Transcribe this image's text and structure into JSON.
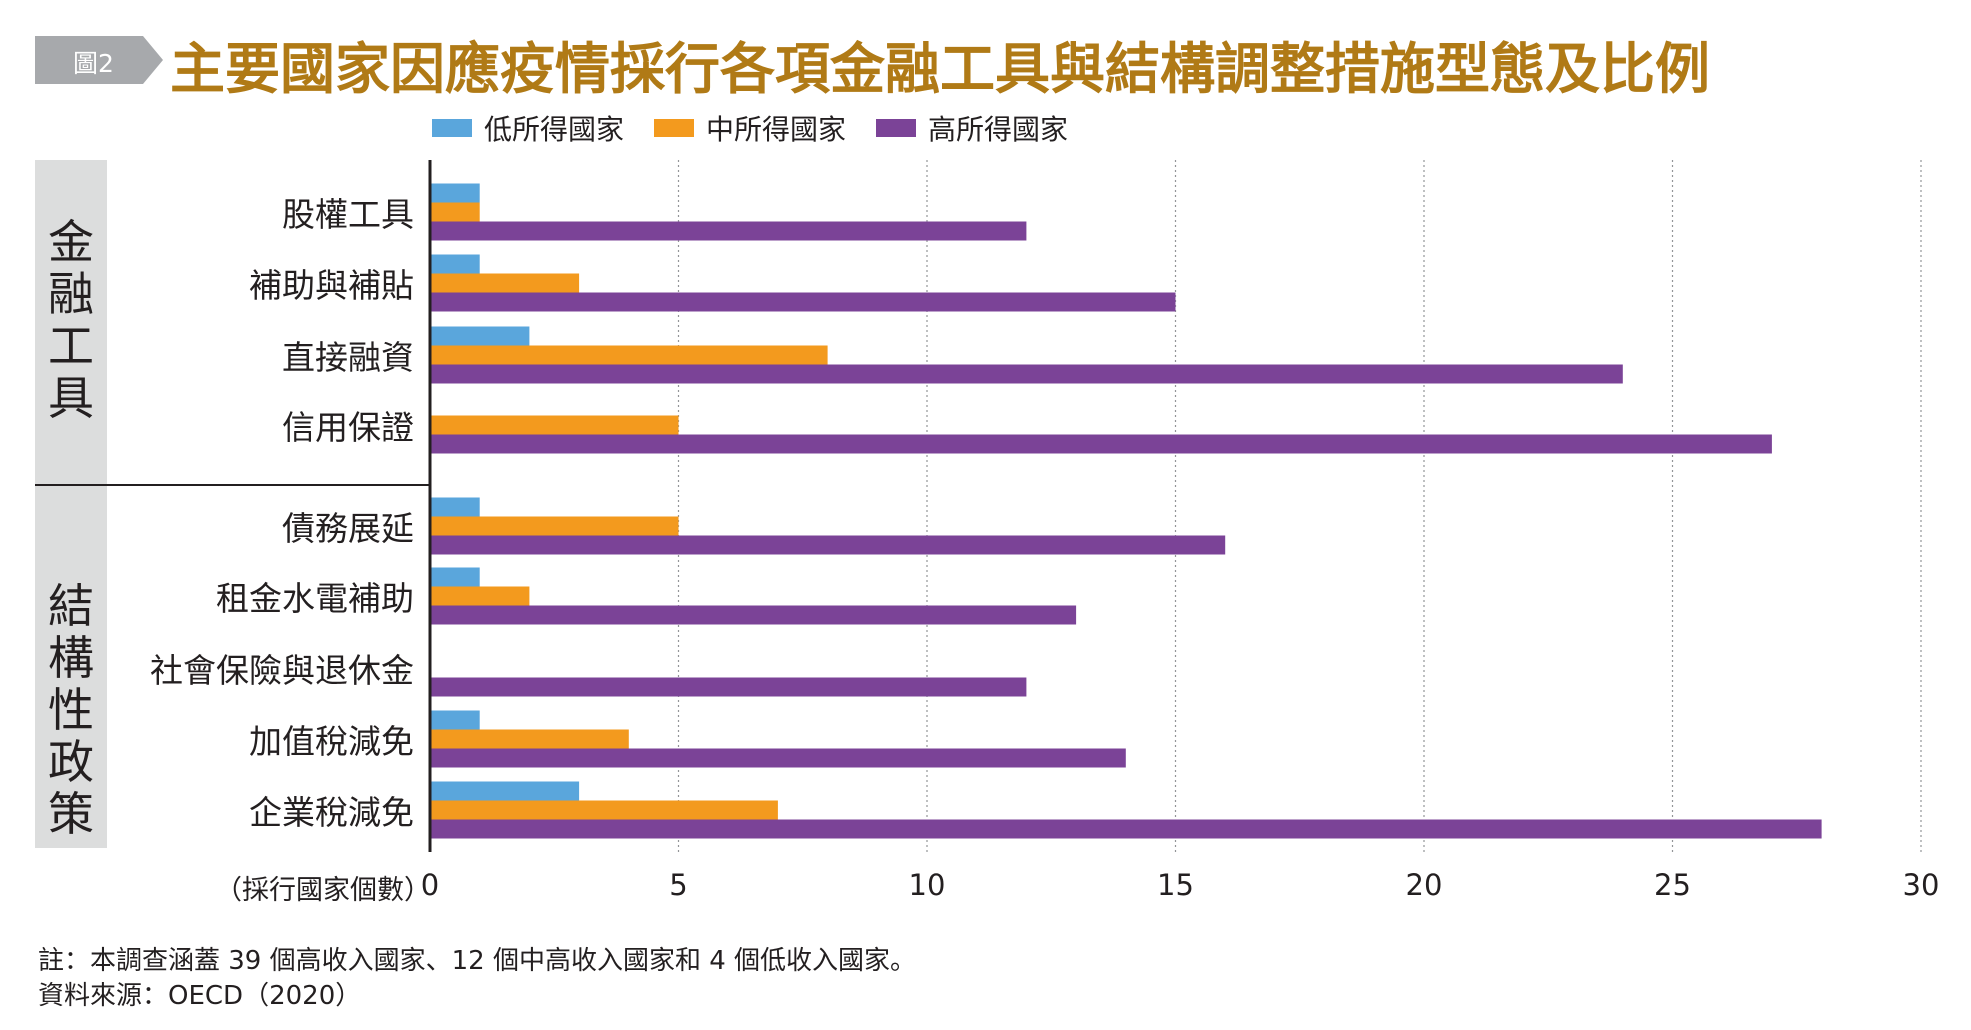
{
  "figure_tag": "圖2",
  "title": "主要國家因應疫情採行各項金融工具與結構調整措施型態及比例",
  "sections": [
    {
      "label": "金融工具"
    },
    {
      "label": "結構性政策"
    }
  ],
  "notes": {
    "note": "註：本調查涵蓋 39 個高收入國家、12 個中高收入國家和 4 個低收入國家。",
    "source": "資料來源：OECD（2020）"
  },
  "colors": {
    "low": "#5aa6dc",
    "middle": "#f39a1e",
    "high": "#7b4397",
    "title": "#b07a16",
    "badge": "#a7a9ac",
    "section_bg": "#dcdddd"
  },
  "chart_data": {
    "type": "bar",
    "orientation": "horizontal",
    "xlabel": "（採行國家個數）",
    "xlim": [
      0,
      30
    ],
    "xticks": [
      0,
      5,
      10,
      15,
      20,
      25,
      30
    ],
    "grid": "vertical dotted",
    "legend_position": "top",
    "categories": [
      "股權工具",
      "補助與補貼",
      "直接融資",
      "信用保證",
      "債務展延",
      "租金水電補助",
      "社會保險與退休金",
      "加值稅減免",
      "企業稅減免"
    ],
    "category_groups": [
      {
        "group": "金融工具",
        "categories": [
          "股權工具",
          "補助與補貼",
          "直接融資",
          "信用保證"
        ]
      },
      {
        "group": "結構性政策",
        "categories": [
          "債務展延",
          "租金水電補助",
          "社會保險與退休金",
          "加值稅減免",
          "企業稅減免"
        ]
      }
    ],
    "series": [
      {
        "name": "低所得國家",
        "color": "#5aa6dc",
        "values": [
          1,
          1,
          2,
          0,
          1,
          1,
          0,
          1,
          3
        ]
      },
      {
        "name": "中所得國家",
        "color": "#f39a1e",
        "values": [
          1,
          3,
          8,
          5,
          5,
          2,
          0,
          4,
          7
        ]
      },
      {
        "name": "高所得國家",
        "color": "#7b4397",
        "values": [
          12,
          15,
          24,
          27,
          16,
          13,
          12,
          14,
          28
        ]
      }
    ]
  }
}
